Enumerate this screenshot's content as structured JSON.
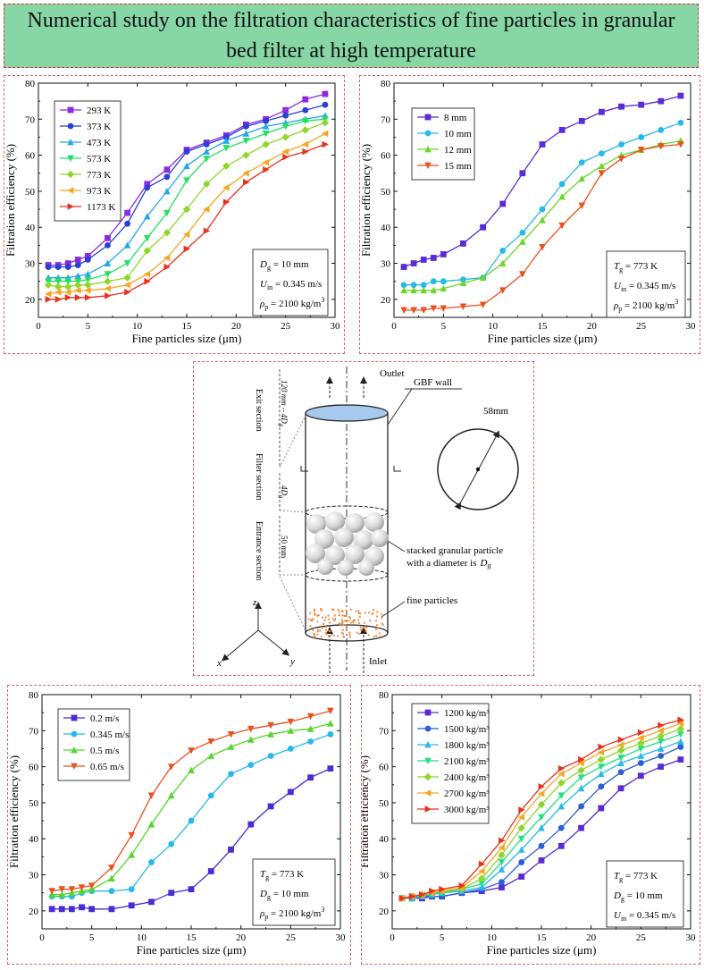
{
  "title": "Numerical study on the filtration characteristics of fine particles in granular bed filter at high temperature",
  "chart_data": [
    {
      "id": "temperature",
      "type": "line",
      "xlabel": "Fine particles size (μm)",
      "ylabel": "Filtration efficiency (%)",
      "xlim": [
        0,
        30
      ],
      "ylim": [
        15,
        80
      ],
      "xticks": [
        0,
        5,
        10,
        15,
        20,
        25,
        30
      ],
      "yticks": [
        20,
        30,
        40,
        50,
        60,
        70,
        80
      ],
      "legend_position": "top-left",
      "x": [
        1,
        2,
        3,
        4,
        5,
        7,
        9,
        11,
        13,
        15,
        17,
        19,
        21,
        23,
        25,
        27,
        29
      ],
      "series": [
        {
          "name": "293 K",
          "color": "#8b2be2",
          "marker": "square",
          "values": [
            29.5,
            29.5,
            30,
            31,
            32,
            37,
            44,
            52,
            56,
            61.5,
            63.5,
            65.5,
            68.5,
            70,
            72.5,
            75.5,
            77
          ]
        },
        {
          "name": "373 K",
          "color": "#2a3fd6",
          "marker": "circle",
          "values": [
            29,
            29,
            29,
            29.5,
            31,
            35,
            41,
            51,
            54,
            61,
            63,
            65,
            68,
            69.5,
            71,
            72.5,
            74
          ]
        },
        {
          "name": "473 K",
          "color": "#26a7e8",
          "marker": "triangle-up",
          "values": [
            26,
            26,
            26,
            26.5,
            27,
            30,
            35,
            43,
            50,
            57,
            61,
            64,
            66,
            68,
            69,
            70,
            71
          ]
        },
        {
          "name": "573 K",
          "color": "#22e060",
          "marker": "triangle-down",
          "values": [
            25,
            25,
            25,
            25,
            25.5,
            27,
            30,
            37,
            44,
            53,
            59,
            62,
            64,
            66,
            68,
            69.5,
            70
          ]
        },
        {
          "name": "773 K",
          "color": "#8fd62a",
          "marker": "diamond",
          "values": [
            24,
            23.5,
            23.5,
            24,
            24,
            25,
            26,
            33.5,
            38.5,
            45,
            52,
            57,
            60,
            63,
            65,
            67,
            69
          ]
        },
        {
          "name": "973 K",
          "color": "#f5a623",
          "marker": "triangle-left",
          "values": [
            21.5,
            22,
            22,
            22.5,
            22.5,
            23,
            24,
            27,
            31.5,
            38,
            45,
            51,
            55,
            58,
            61,
            63,
            66
          ]
        },
        {
          "name": "1173 K",
          "color": "#e8321e",
          "marker": "triangle-right",
          "values": [
            20,
            20,
            20.5,
            20.5,
            20.5,
            21,
            22,
            25,
            29,
            34,
            39,
            47,
            52.5,
            56,
            59.5,
            61,
            63
          ]
        }
      ],
      "annotation": [
        {
          "sym": "D",
          "sub": "g",
          "rest": " = 10 mm"
        },
        {
          "sym": "U",
          "sub": "in",
          "rest": " = 0.345 m/s"
        },
        {
          "sym": "ρ",
          "sub": "p",
          "rest": " = 2100 kg/m",
          "sup": "3"
        }
      ]
    },
    {
      "id": "diameter",
      "type": "line",
      "xlabel": "Fine particles size (μm)",
      "ylabel": "Filtration efficiency (%)",
      "xlim": [
        0,
        30
      ],
      "ylim": [
        15,
        80
      ],
      "xticks": [
        0,
        5,
        10,
        15,
        20,
        25,
        30
      ],
      "yticks": [
        20,
        30,
        40,
        50,
        60,
        70,
        80
      ],
      "legend_position": "top-left",
      "x": [
        1,
        2,
        3,
        4,
        5,
        7,
        9,
        11,
        13,
        15,
        17,
        19,
        21,
        23,
        25,
        27,
        29
      ],
      "series": [
        {
          "name": "8 mm",
          "color": "#5a2bd6",
          "marker": "square",
          "values": [
            29,
            30,
            31,
            31.5,
            32.5,
            35.5,
            40,
            46.5,
            55,
            63,
            67,
            69.5,
            72,
            73.5,
            74,
            75,
            76.5
          ]
        },
        {
          "name": "10 mm",
          "color": "#27b9ea",
          "marker": "circle",
          "values": [
            24,
            24,
            24,
            25,
            25,
            25.5,
            26,
            33.5,
            38.5,
            45,
            52,
            58,
            60.5,
            63,
            65,
            67,
            69
          ]
        },
        {
          "name": "12 mm",
          "color": "#6cd62a",
          "marker": "triangle-up",
          "values": [
            22.5,
            22.5,
            22.5,
            22.5,
            23,
            24.5,
            26,
            30,
            36,
            42,
            48.5,
            53.5,
            57,
            60,
            61.5,
            63,
            64
          ]
        },
        {
          "name": "15 mm",
          "color": "#e8521e",
          "marker": "triangle-down",
          "values": [
            17,
            17,
            17,
            17.5,
            17.5,
            18,
            18.5,
            22.5,
            27,
            34.5,
            40.5,
            46,
            55,
            59,
            61.5,
            62.5,
            63
          ]
        }
      ],
      "annotation": [
        {
          "sym": "T",
          "sub": "g",
          "rest": " = 773 K"
        },
        {
          "sym": "U",
          "sub": "in",
          "rest": " = 0.345 m/s"
        },
        {
          "sym": "ρ",
          "sub": "p",
          "rest": " = 2100 kg/m",
          "sup": "3"
        }
      ]
    },
    {
      "id": "velocity",
      "type": "line",
      "xlabel": "Fine particles size (μm)",
      "ylabel": "Filtration efficiency (%)",
      "xlim": [
        0,
        30
      ],
      "ylim": [
        15,
        80
      ],
      "xticks": [
        0,
        5,
        10,
        15,
        20,
        25,
        30
      ],
      "yticks": [
        20,
        30,
        40,
        50,
        60,
        70,
        80
      ],
      "legend_position": "top-left",
      "x": [
        1,
        2,
        3,
        4,
        5,
        7,
        9,
        11,
        13,
        15,
        17,
        19,
        21,
        23,
        25,
        27,
        29
      ],
      "series": [
        {
          "name": "0.2 m/s",
          "color": "#4b2bd6",
          "marker": "square",
          "values": [
            20.5,
            20.5,
            20.5,
            21,
            20.5,
            20.5,
            21.5,
            22.5,
            25,
            26,
            31,
            37,
            44,
            49,
            53,
            57,
            59.5
          ]
        },
        {
          "name": "0.345 m/s",
          "color": "#27b9ea",
          "marker": "circle",
          "values": [
            24,
            24,
            24,
            25,
            25.5,
            25.5,
            26,
            33.5,
            38.5,
            45,
            52,
            58,
            60.5,
            63,
            65,
            67,
            69
          ]
        },
        {
          "name": "0.5 m/s",
          "color": "#54d62a",
          "marker": "triangle-up",
          "values": [
            24.5,
            24.5,
            25,
            25.5,
            26,
            29,
            35.5,
            44,
            52,
            59,
            63,
            65.5,
            67.5,
            69,
            70,
            70.5,
            72
          ]
        },
        {
          "name": "0.65 m/s",
          "color": "#e8521e",
          "marker": "triangle-down",
          "values": [
            25.5,
            26,
            26,
            26.5,
            27,
            32,
            41,
            52,
            60,
            64.5,
            67,
            69,
            70.5,
            71.5,
            72.5,
            74,
            75.5
          ]
        }
      ],
      "annotation": [
        {
          "sym": "T",
          "sub": "g",
          "rest": " = 773 K"
        },
        {
          "sym": "D",
          "sub": "g",
          "rest": " = 10 mm"
        },
        {
          "sym": "ρ",
          "sub": "p",
          "rest": " = 2100 kg/m",
          "sup": "3"
        }
      ]
    },
    {
      "id": "density",
      "type": "line",
      "xlabel": "Fine particles size (μm)",
      "ylabel": "Filtration efficiency (%)",
      "xlim": [
        0,
        30
      ],
      "ylim": [
        15,
        80
      ],
      "xticks": [
        0,
        5,
        10,
        15,
        20,
        25,
        30
      ],
      "yticks": [
        20,
        30,
        40,
        50,
        60,
        70,
        80
      ],
      "legend_position": "top-left",
      "x": [
        1,
        2,
        3,
        4,
        5,
        7,
        9,
        11,
        13,
        15,
        17,
        19,
        21,
        23,
        25,
        27,
        29
      ],
      "series": [
        {
          "name": "1200 kg/m³",
          "color": "#5a2bd6",
          "marker": "square",
          "values": [
            23.5,
            23.5,
            23.5,
            24,
            24,
            25,
            25.5,
            26.5,
            29.5,
            34,
            38,
            43,
            48.5,
            54,
            57.5,
            60,
            62
          ]
        },
        {
          "name": "1500 kg/m³",
          "color": "#2a5fd6",
          "marker": "circle",
          "values": [
            23.5,
            23.5,
            24,
            24,
            24,
            25,
            26,
            28,
            33.5,
            38,
            43,
            49,
            54.5,
            58.5,
            61,
            63,
            65.5
          ]
        },
        {
          "name": "1800 kg/m³",
          "color": "#27b9ea",
          "marker": "triangle-up",
          "values": [
            23.5,
            23.5,
            24,
            24.5,
            25,
            25.5,
            26.5,
            31.5,
            37,
            43,
            49,
            54,
            58,
            61,
            63,
            65,
            67
          ]
        },
        {
          "name": "2100 kg/m³",
          "color": "#22e080",
          "marker": "triangle-down",
          "values": [
            23.5,
            24,
            24,
            25,
            25,
            26,
            27.5,
            33.5,
            40,
            46,
            52,
            57,
            60,
            62.5,
            65,
            67,
            69
          ]
        },
        {
          "name": "2400 kg/m³",
          "color": "#8fd62a",
          "marker": "diamond",
          "values": [
            23.5,
            24,
            24.5,
            25,
            25.5,
            26,
            29,
            35.5,
            43,
            49.5,
            55.5,
            59,
            62,
            64.5,
            66.5,
            68.5,
            70.5
          ]
        },
        {
          "name": "2700 kg/m³",
          "color": "#f5a623",
          "marker": "triangle-left",
          "values": [
            23.5,
            24,
            24.5,
            25,
            25.5,
            26.5,
            31,
            37.5,
            46,
            52.5,
            58,
            61,
            64,
            66,
            68,
            70,
            72
          ]
        },
        {
          "name": "3000 kg/m³",
          "color": "#e8321e",
          "marker": "triangle-right",
          "values": [
            23.5,
            24,
            24.5,
            25.5,
            26,
            27,
            33,
            39.5,
            48,
            54.5,
            59.5,
            62,
            65.5,
            67.5,
            69.5,
            71.5,
            73
          ]
        }
      ],
      "annotation": [
        {
          "sym": "T",
          "sub": "g",
          "rest": " = 773 K"
        },
        {
          "sym": "D",
          "sub": "g",
          "rest": " = 10 mm"
        },
        {
          "sym": "U",
          "sub": "in",
          "rest": " = 0.345 m/s"
        }
      ]
    }
  ],
  "diagram": {
    "outlet_label": "Outlet",
    "inlet_label": "Inlet",
    "wall_label": "GBF wall",
    "diameter_label": "58mm",
    "particle_label_line1": "stacked granular particle",
    "particle_label_line2": "with a diameter is",
    "particle_label_sym": "D",
    "particle_label_sub": "g",
    "fine_particles_label": "fine particles",
    "exit_section_label": "Exit section",
    "exit_dim_label": "120 mm – 4D",
    "exit_dim_sub": "g",
    "filter_section_label": "Filter section",
    "filter_dim_label": "4D",
    "filter_dim_sub": "g",
    "entrance_section_label": "Entrance section",
    "entrance_dim_label": "50 mm",
    "axis_z": "z",
    "axis_x": "x",
    "axis_y": "y",
    "colors": {
      "cap": "#a8c8ee",
      "fine": "#f08a3c",
      "granule": "#d0d0d0"
    }
  }
}
